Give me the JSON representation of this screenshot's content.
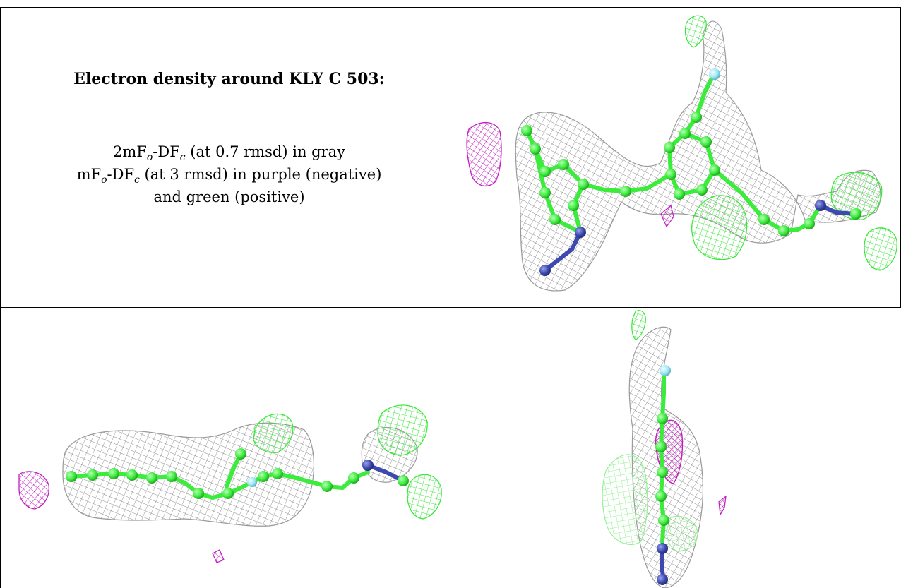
{
  "figure": {
    "title": "Electron density around KLY C 503:",
    "legend": {
      "line1": {
        "lead": "2mF",
        "sub_o": "o",
        "mid": "-DF",
        "sub_c": "c",
        "tail": " (at 0.7 rmsd) in gray"
      },
      "line2": {
        "lead": "mF",
        "sub_o": "o",
        "mid": "-DF",
        "sub_c": "c",
        "tail": " (at 3 rmsd) in purple (negative)"
      },
      "line3": "and green (positive)"
    },
    "colors": {
      "density_2fofc": "#8c8c8c",
      "difference_negative": "#c01ec0",
      "difference_positive": "#33e833",
      "carbon_atoms": "#3cec3c",
      "nitrogen_atoms": "#3d49b0",
      "fluorine_atoms": "#9be8f5",
      "grid_lines": "#000000"
    },
    "icons": {
      "top_right": "ligand-density-view-top",
      "bottom_left": "ligand-density-view-side",
      "bottom_right": "ligand-density-view-end-on"
    }
  }
}
